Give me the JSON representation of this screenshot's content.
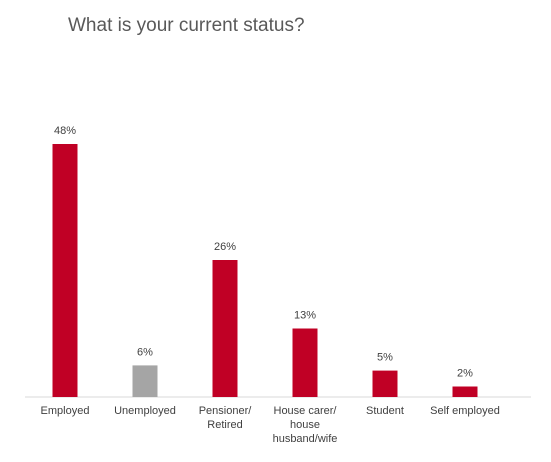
{
  "chart_data": {
    "type": "bar",
    "title": "What is your current status?",
    "xlabel": "",
    "ylabel": "",
    "ylim": [
      0,
      48
    ],
    "grid": false,
    "legend": "none",
    "value_suffix": "%",
    "categories": [
      "Employed",
      "Unemployed",
      "Pensioner/ Retired",
      "House carer/ house husband/wife",
      "Student",
      "Self employed"
    ],
    "category_lines": [
      [
        "Employed"
      ],
      [
        "Unemployed"
      ],
      [
        "Pensioner/",
        "Retired"
      ],
      [
        "House carer/",
        "house",
        "husband/wife"
      ],
      [
        "Student"
      ],
      [
        "Self employed"
      ]
    ],
    "values": [
      48,
      6,
      26,
      13,
      5,
      2
    ],
    "data_labels": [
      "48%",
      "6%",
      "26%",
      "13%",
      "5%",
      "2%"
    ],
    "colors": [
      "#c00025",
      "#a5a5a5",
      "#c00025",
      "#c00025",
      "#c00025",
      "#c00025"
    ]
  }
}
